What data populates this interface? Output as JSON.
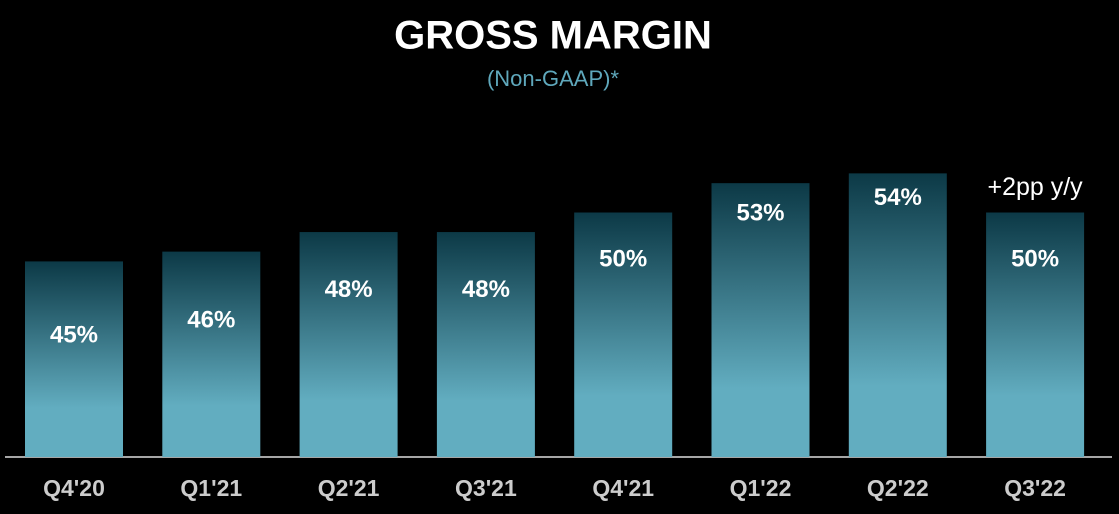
{
  "chart_data": {
    "type": "bar",
    "title": "GROSS MARGIN",
    "subtitle": "(Non-GAAP)*",
    "categories": [
      "Q4'20",
      "Q1'21",
      "Q2'21",
      "Q3'21",
      "Q4'21",
      "Q1'22",
      "Q2'22",
      "Q3'22"
    ],
    "values": [
      45,
      46,
      48,
      48,
      50,
      53,
      54,
      50
    ],
    "value_labels": [
      "45%",
      "46%",
      "48%",
      "48%",
      "50%",
      "53%",
      "54%",
      "50%"
    ],
    "annotation": "+2pp y/y",
    "color": [
      "#0c3946",
      "#62adc0"
    ],
    "ylim": [
      25,
      55
    ]
  }
}
